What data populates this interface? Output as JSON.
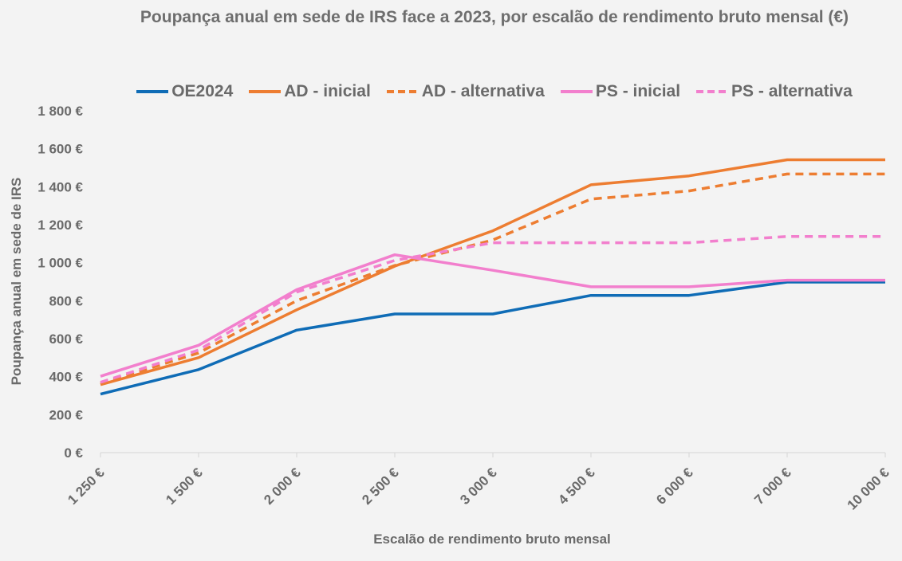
{
  "chart_data": {
    "type": "line",
    "title": "Poupança anual em sede de IRS face a 2023, por escalão de rendimento bruto mensal (€)",
    "xlabel": "Escalão de rendimento bruto mensal",
    "ylabel": "Poupança anual em sede de IRS",
    "categories": [
      "1 250 €",
      "1 500 €",
      "2 000 €",
      "2 500 €",
      "3 000 €",
      "4 500 €",
      "6 000 €",
      "7 000 €",
      "10 000 €"
    ],
    "ylim": [
      0,
      1800
    ],
    "yticks": [
      0,
      200,
      400,
      600,
      800,
      1000,
      1200,
      1400,
      1600,
      1800
    ],
    "ytick_labels": [
      "0 €",
      "200 €",
      "400 €",
      "600 €",
      "800 €",
      "1 000 €",
      "1 200 €",
      "1 400 €",
      "1 600 €",
      "1 800 €"
    ],
    "grid": false,
    "legend_position": "top",
    "series": [
      {
        "name": "OE2024",
        "color": "#0f6cb6",
        "dash": "solid",
        "values": [
          308,
          437,
          645,
          730,
          730,
          828,
          828,
          898,
          898
        ]
      },
      {
        "name": "AD - inicial",
        "color": "#ed7d31",
        "dash": "solid",
        "values": [
          358,
          500,
          752,
          982,
          1168,
          1410,
          1457,
          1542,
          1542
        ]
      },
      {
        "name": "AD - alternativa",
        "color": "#ed7d31",
        "dash": "dashed",
        "values": [
          363,
          525,
          800,
          985,
          1120,
          1335,
          1378,
          1467,
          1467
        ]
      },
      {
        "name": "PS - inicial",
        "color": "#f27fcd",
        "dash": "solid",
        "values": [
          402,
          565,
          858,
          1042,
          960,
          873,
          873,
          908,
          908
        ]
      },
      {
        "name": "PS - alternativa",
        "color": "#f27fcd",
        "dash": "dashed",
        "values": [
          370,
          540,
          845,
          1012,
          1105,
          1105,
          1105,
          1138,
          1138
        ]
      }
    ]
  }
}
